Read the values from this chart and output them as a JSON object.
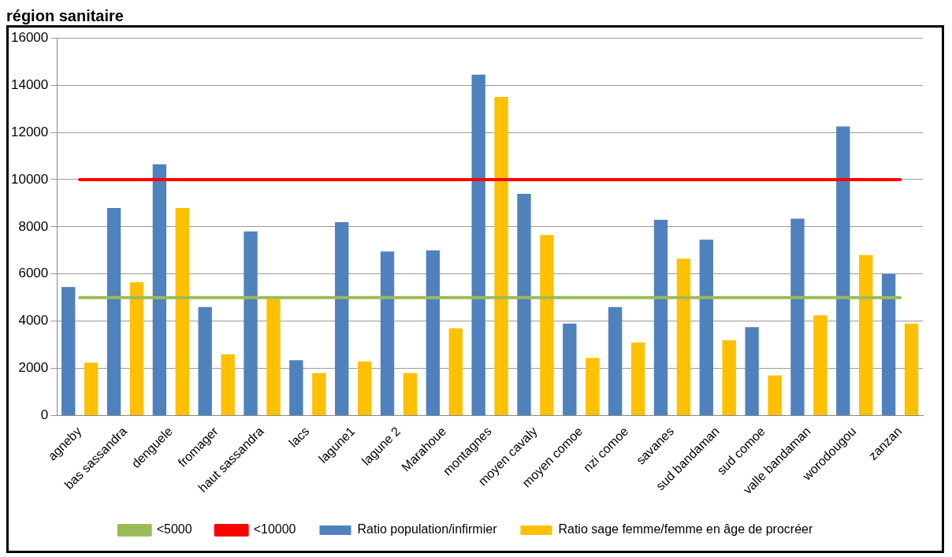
{
  "chart_data": {
    "type": "bar",
    "title": "région sanitaire",
    "categories": [
      "agneby",
      "bas sassandra",
      "denguele",
      "fromager",
      "haut sassandra",
      "lacs",
      "lagune1",
      "lagune 2",
      "Marahoue",
      "montagnes",
      "moyen cavaly",
      "moyen comoe",
      "nzi comoe",
      "savanes",
      "sud bandaman",
      "sud comoe",
      "valle bandaman",
      "worodougou",
      "zanzan"
    ],
    "series": [
      {
        "name": "Ratio population/infirmier",
        "color": "#4f81bd",
        "values": [
          5450,
          8800,
          10650,
          4600,
          7800,
          2350,
          8200,
          6950,
          7000,
          14450,
          9400,
          3900,
          4600,
          8300,
          7450,
          3750,
          8350,
          12250,
          6000
        ]
      },
      {
        "name": "Ratio sage femme/femme en âge de procréer",
        "color": "#ffc000",
        "values": [
          2250,
          5650,
          8800,
          2600,
          4950,
          1800,
          2300,
          1800,
          3700,
          13500,
          7650,
          2450,
          3100,
          6650,
          3200,
          1700,
          4250,
          6800,
          3900
        ]
      },
      {
        "name": "<5000",
        "type": "line",
        "color": "#9bbb59",
        "values": [
          5000,
          5000,
          5000,
          5000,
          5000,
          5000,
          5000,
          5000,
          5000,
          5000,
          5000,
          5000,
          5000,
          5000,
          5000,
          5000,
          5000,
          5000,
          5000
        ]
      },
      {
        "name": "<10000",
        "type": "line",
        "color": "#ff0000",
        "values": [
          10000,
          10000,
          10000,
          10000,
          10000,
          10000,
          10000,
          10000,
          10000,
          10000,
          10000,
          10000,
          10000,
          10000,
          10000,
          10000,
          10000,
          10000,
          10000
        ]
      }
    ],
    "ylim": [
      0,
      16000
    ],
    "yticks": [
      0,
      2000,
      4000,
      6000,
      8000,
      10000,
      12000,
      14000,
      16000
    ],
    "grid": "y",
    "legend": "bottom",
    "marker": "none"
  }
}
